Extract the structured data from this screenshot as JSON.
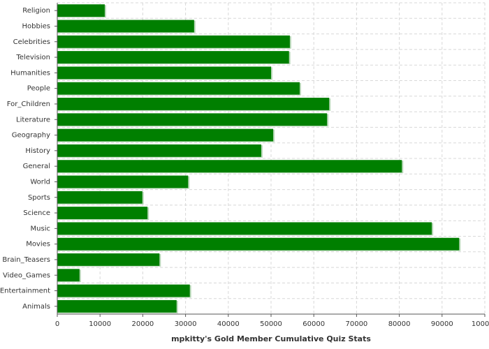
{
  "chart_data": {
    "type": "hbar",
    "x_label": "mpkitty's Gold Member Cumulative Quiz Stats",
    "categories": [
      "Religion",
      "Hobbies",
      "Celebrities",
      "Television",
      "Humanities",
      "People",
      "For_Children",
      "Literature",
      "Geography",
      "History",
      "General",
      "World",
      "Sports",
      "Science",
      "Music",
      "Movies",
      "Brain_Teasers",
      "Video_Games",
      "Entertainment",
      "Animals"
    ],
    "values": [
      11100,
      32000,
      54400,
      54200,
      50000,
      56700,
      63600,
      63100,
      50500,
      47700,
      80600,
      30600,
      19900,
      21100,
      87600,
      94000,
      23900,
      5200,
      31000,
      27900
    ],
    "color": "#007f00",
    "xlim": [
      0,
      100000
    ],
    "xticks": [
      0,
      10000,
      20000,
      30000,
      40000,
      50000,
      60000,
      70000,
      80000,
      90000,
      100000
    ],
    "grid": true
  }
}
